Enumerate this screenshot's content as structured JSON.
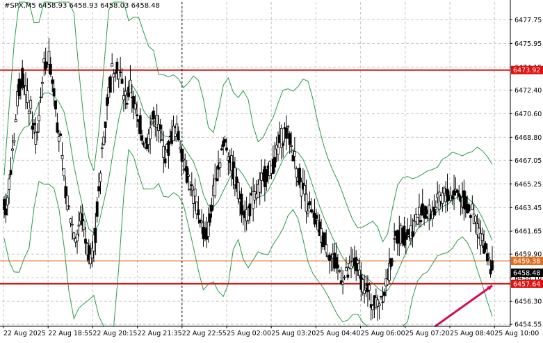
{
  "header": {
    "symbol": "#SPX,M5",
    "open": "6458.93",
    "high": "6458.93",
    "low": "6458.03",
    "close": "6458.48"
  },
  "chart_data": {
    "type": "candlestick",
    "title": "#SPX,M5",
    "y_ticks": [
      "6477.75",
      "6475.95",
      "6474.15",
      "6472.40",
      "6470.60",
      "6468.80",
      "6467.05",
      "6465.25",
      "6463.45",
      "6461.65",
      "6459.90",
      "6458.10",
      "6456.30",
      "6454.55"
    ],
    "ylim": [
      6454.4,
      6479.1
    ],
    "x_ticks": [
      "22 Aug 2025",
      "22 Aug 18:55",
      "22 Aug 20:15",
      "22 Aug 21:35",
      "22 Aug 22:55",
      "25 Aug 02:00",
      "25 Aug 03:20",
      "25 Aug 04:40",
      "25 Aug 06:00",
      "25 Aug 07:20",
      "25 Aug 08:40",
      "25 Aug 10:00"
    ],
    "horizontal_lines": [
      {
        "price": 6473.92,
        "label": "6473.92",
        "color": "#e01010",
        "style": "solid-thick"
      },
      {
        "price": 6459.38,
        "label": "6459.38",
        "color": "#e07020",
        "style": "solid-thin"
      },
      {
        "price": 6457.64,
        "label": "6457.64",
        "color": "#e01010",
        "style": "solid-thick"
      }
    ],
    "current_price": {
      "price": 6458.48,
      "label": "6458.48"
    },
    "vertical_marker": {
      "x_label": "22 Aug 22:55",
      "style": "dotted"
    },
    "arrow": {
      "from": {
        "t": 0.94,
        "price": 6454.4
      },
      "to": {
        "t": 1.0,
        "price": 6457.5
      },
      "color": "#d01050"
    },
    "indicator": {
      "name": "Bollinger Bands",
      "color": "#2a9a4a"
    },
    "candles_anchor_close": [
      6463.5,
      6467.0,
      6471.2,
      6474.0,
      6472.0,
      6470.5,
      6468.3,
      6473.0,
      6475.2,
      6474.0,
      6470.8,
      6467.5,
      6464.0,
      6462.5,
      6461.0,
      6463.2,
      6460.5,
      6459.8,
      6462.0,
      6466.8,
      6471.0,
      6473.5,
      6474.8,
      6473.0,
      6471.5,
      6472.8,
      6470.2,
      6469.5,
      6468.0,
      6469.8,
      6470.5,
      6468.6,
      6467.2,
      6468.8,
      6469.5,
      6468.2,
      6466.4,
      6465.0,
      6463.8,
      6462.5,
      6460.8,
      6463.0,
      6465.8,
      6467.6,
      6468.6,
      6467.0,
      6465.5,
      6464.0,
      6462.9,
      6463.6,
      6464.4,
      6465.2,
      6466.0,
      6466.4,
      6467.2,
      6468.6,
      6469.3,
      6468.5,
      6466.8,
      6465.4,
      6464.2,
      6463.0,
      6462.4,
      6461.5,
      6460.8,
      6459.9,
      6459.0,
      6458.5,
      6458.0,
      6458.7,
      6459.3,
      6458.2,
      6457.3,
      6456.6,
      6456.0,
      6456.6,
      6457.4,
      6459.0,
      6460.8,
      6461.6,
      6461.3,
      6461.6,
      6462.4,
      6463.2,
      6462.9,
      6463.0,
      6463.4,
      6464.0,
      6464.6,
      6464.2,
      6464.8,
      6464.4,
      6463.8,
      6463.3,
      6462.6,
      6461.4,
      6460.5,
      6459.4,
      6458.48
    ]
  }
}
